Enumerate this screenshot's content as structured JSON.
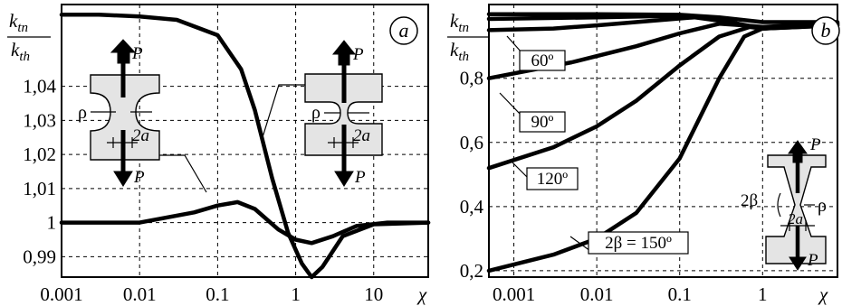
{
  "chart_data": [
    {
      "id": "a",
      "type": "line",
      "panel_label": "a",
      "y_label": {
        "num": "k",
        "num_sub": "tn",
        "den": "k",
        "den_sub": "th"
      },
      "x_scale": "log",
      "xlim": [
        0.001,
        50
      ],
      "ylim": [
        0.984,
        1.064
      ],
      "x_ticks": [
        0.001,
        0.01,
        0.1,
        1,
        10
      ],
      "x_tick_labels": [
        "0.001",
        "0.01",
        "0.1",
        "1",
        "10"
      ],
      "x_axis_symbol": "χ",
      "y_ticks": [
        0.99,
        1,
        1.01,
        1.02,
        1.03,
        1.04
      ],
      "y_tick_labels": [
        "0,99",
        "1",
        "1,01",
        "1,02",
        "1,03",
        "1,04"
      ],
      "grid": true,
      "series": [
        {
          "x": [
            0.001,
            0.003,
            0.01,
            0.03,
            0.1,
            0.2,
            0.3,
            0.5,
            0.8,
            1.2,
            1.6,
            2.2,
            4,
            10,
            50
          ],
          "y": [
            1.061,
            1.061,
            1.0605,
            1.0595,
            1.055,
            1.045,
            1.033,
            1.013,
            0.997,
            0.988,
            0.984,
            0.987,
            0.996,
            0.9995,
            1.0
          ]
        },
        {
          "x": [
            0.001,
            0.01,
            0.05,
            0.1,
            0.18,
            0.3,
            0.6,
            1.0,
            1.6,
            3,
            6,
            15,
            50
          ],
          "y": [
            1.0,
            1.0,
            1.003,
            1.005,
            1.006,
            1.004,
            0.998,
            0.995,
            0.994,
            0.996,
            0.999,
            1.0,
            1.0
          ]
        }
      ],
      "insets": [
        {
          "name": "specimen-round-notch",
          "labels": {
            "load_top": "P",
            "load_bottom": "P",
            "radius": "ρ",
            "width": "2a"
          }
        },
        {
          "name": "specimen-u-notch",
          "labels": {
            "load_top": "P",
            "load_bottom": "P",
            "radius": "ρ",
            "width": "2a"
          }
        }
      ]
    },
    {
      "id": "b",
      "type": "line",
      "panel_label": "b",
      "y_label": {
        "num": "k",
        "num_sub": "tn",
        "den": "k",
        "den_sub": "th"
      },
      "x_scale": "log",
      "xlim": [
        0.0005,
        8
      ],
      "ylim": [
        0.18,
        1.03
      ],
      "x_ticks": [
        0.001,
        0.01,
        0.1,
        1
      ],
      "x_tick_labels": [
        "0.001",
        "0.01",
        "0.1",
        "1"
      ],
      "x_axis_symbol": "χ",
      "y_ticks": [
        0.2,
        0.4,
        0.6,
        0.8
      ],
      "y_tick_labels": [
        "0,2",
        "0,4",
        "0,6",
        "0,8"
      ],
      "grid": true,
      "series": [
        {
          "x": [
            0.0005,
            0.01,
            0.1,
            0.3,
            1,
            8
          ],
          "y": [
            1.0,
            1.0,
            0.998,
            0.99,
            0.975,
            0.975
          ]
        },
        {
          "x": [
            0.0005,
            0.01,
            0.1,
            0.25,
            0.6,
            1,
            8
          ],
          "y": [
            0.985,
            0.99,
            0.995,
            0.99,
            0.965,
            0.96,
            0.972
          ]
        },
        {
          "x": [
            0.0005,
            0.003,
            0.01,
            0.05,
            0.15,
            0.4,
            1,
            8
          ],
          "y": [
            0.95,
            0.955,
            0.965,
            0.98,
            0.99,
            0.975,
            0.955,
            0.97
          ]
        },
        {
          "x": [
            0.0005,
            0.005,
            0.03,
            0.1,
            0.3,
            0.6,
            1,
            8
          ],
          "y": [
            0.8,
            0.85,
            0.9,
            0.94,
            0.97,
            0.965,
            0.955,
            0.968
          ]
        },
        {
          "x": [
            0.0005,
            0.003,
            0.01,
            0.03,
            0.1,
            0.3,
            0.7,
            1,
            8
          ],
          "y": [
            0.52,
            0.585,
            0.65,
            0.73,
            0.84,
            0.93,
            0.96,
            0.955,
            0.965
          ]
        },
        {
          "x": [
            0.0005,
            0.003,
            0.01,
            0.03,
            0.1,
            0.3,
            0.6,
            1,
            8
          ],
          "y": [
            0.2,
            0.25,
            0.3,
            0.38,
            0.55,
            0.8,
            0.93,
            0.955,
            0.965
          ]
        }
      ],
      "callouts": [
        "60º",
        "90º",
        "120º",
        "2β = 150º"
      ],
      "insets": [
        {
          "name": "specimen-v-notch",
          "labels": {
            "load_top": "P",
            "load_bottom": "P",
            "angle": "2β",
            "radius": "ρ",
            "width": "2a"
          }
        }
      ]
    }
  ]
}
